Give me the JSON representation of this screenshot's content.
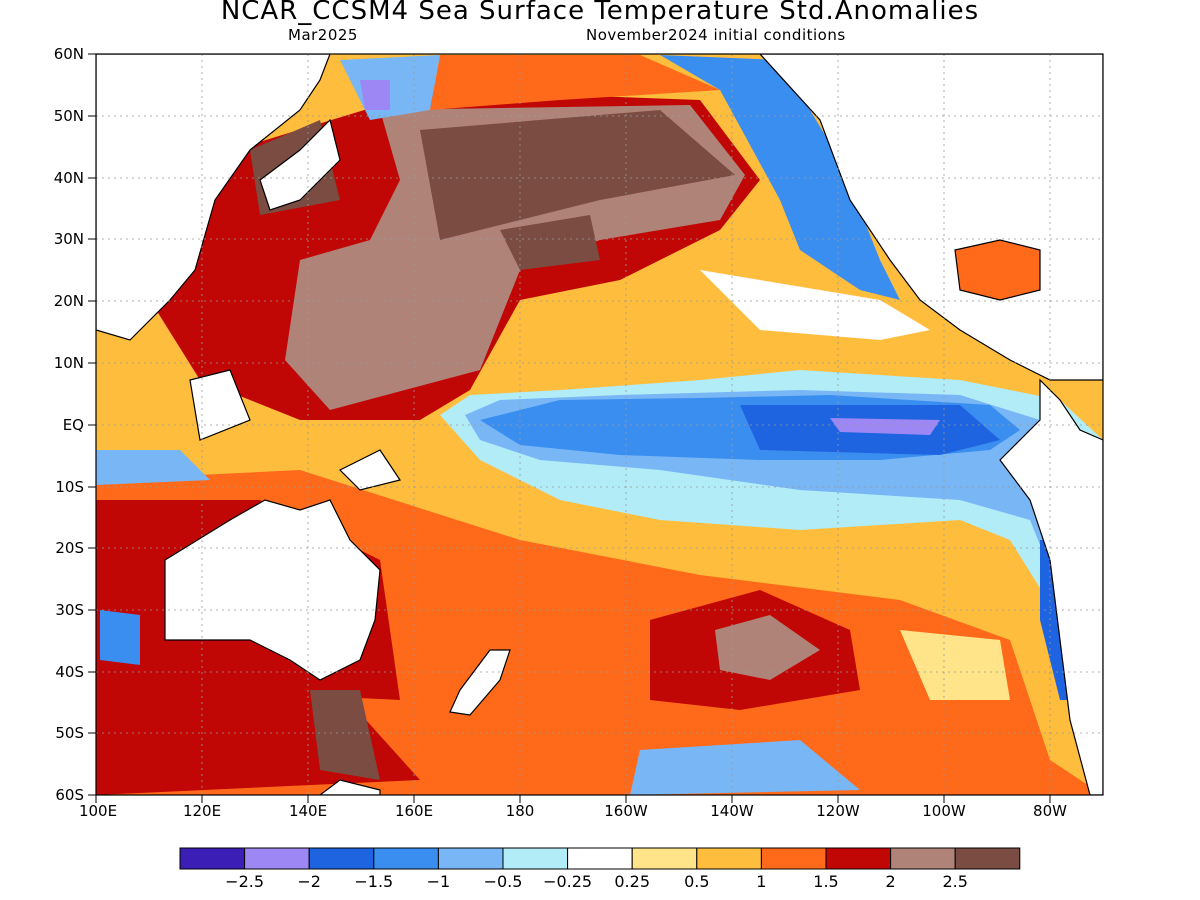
{
  "title": "NCAR_CCSM4  Sea  Surface  Temperature  Std.Anomalies",
  "valid_label": "Mar2025",
  "init_label": "November2024  initial  conditions",
  "map": {
    "lat_ticks": [
      "60N",
      "50N",
      "40N",
      "30N",
      "20N",
      "10N",
      "EQ",
      "10S",
      "20S",
      "30S",
      "40S",
      "50S",
      "60S"
    ],
    "lon_ticks": [
      "100E",
      "120E",
      "140E",
      "160E",
      "180",
      "160W",
      "140W",
      "120W",
      "100W",
      "80W"
    ],
    "lon_range": [
      100,
      290
    ],
    "lat_range": [
      -60,
      60
    ],
    "projection": "cylindrical equidistant",
    "grid": "dotted"
  },
  "colorbar": {
    "colors": [
      "#3a1eb5",
      "#9d87f5",
      "#1e63e0",
      "#3a8ef0",
      "#79b6f5",
      "#b1ecf7",
      "#ffffff",
      "#ffe48a",
      "#ffbd3d",
      "#ff6a1a",
      "#c10606",
      "#b08378",
      "#7a4c42"
    ],
    "labels": [
      "-2.5",
      "-2",
      "-1.5",
      "-1",
      "-0.5",
      "-0.25",
      "0.25",
      "0.5",
      "1",
      "1.5",
      "2",
      "2.5"
    ]
  },
  "land_color": "#ffffff",
  "coast_color": "#000000"
}
